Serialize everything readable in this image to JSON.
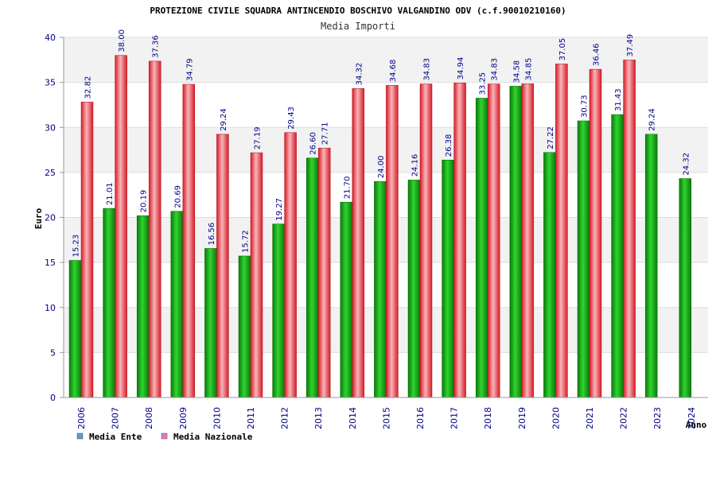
{
  "chart_data": {
    "type": "bar",
    "title": "PROTEZIONE CIVILE SQUADRA ANTINCENDIO BOSCHIVO VALGANDINO ODV (c.f.90010210160)",
    "subtitle": "Media Importi",
    "xlabel": "Anno",
    "ylabel": "Euro",
    "ylim": [
      0,
      40
    ],
    "yticks": [
      0,
      5,
      10,
      15,
      20,
      25,
      30,
      35,
      40
    ],
    "grid": true,
    "legend_position": "bottom-left",
    "categories": [
      "2006",
      "2007",
      "2008",
      "2009",
      "2010",
      "2011",
      "2012",
      "2013",
      "2014",
      "2015",
      "2016",
      "2017",
      "2018",
      "2019",
      "2020",
      "2021",
      "2022",
      "2023",
      "2024"
    ],
    "series": [
      {
        "name": "Media Ente",
        "legend_color": "#5b9bd5",
        "bar_color": "#1fa81f",
        "values": [
          15.23,
          21.01,
          20.19,
          20.69,
          16.56,
          15.72,
          19.27,
          26.6,
          21.7,
          24.0,
          24.16,
          26.38,
          33.25,
          34.58,
          27.22,
          30.73,
          31.43,
          29.24,
          24.32
        ],
        "labels": [
          "15.23",
          "21.01",
          "20.19",
          "20.69",
          "16.56",
          "15.72",
          "19.27",
          "26.60",
          "21.70",
          "24.00",
          "24.16",
          "26.38",
          "33.25",
          "34.58",
          "27.22",
          "30.73",
          "31.43",
          "29.24",
          "24.32"
        ]
      },
      {
        "name": "Media Nazionale",
        "legend_color": "#e377c2",
        "bar_color": "#e8303a",
        "values": [
          32.82,
          38.0,
          37.36,
          34.79,
          29.24,
          27.19,
          29.43,
          27.71,
          34.32,
          34.68,
          34.83,
          34.94,
          34.83,
          34.85,
          37.05,
          36.46,
          37.49,
          null,
          null
        ],
        "labels": [
          "32.82",
          "38.00",
          "37.36",
          "34.79",
          "29.24",
          "27.19",
          "29.43",
          "27.71",
          "34.32",
          "34.68",
          "34.83",
          "34.94",
          "34.83",
          "34.85",
          "37.05",
          "36.46",
          "37.49",
          "",
          ""
        ]
      }
    ]
  }
}
